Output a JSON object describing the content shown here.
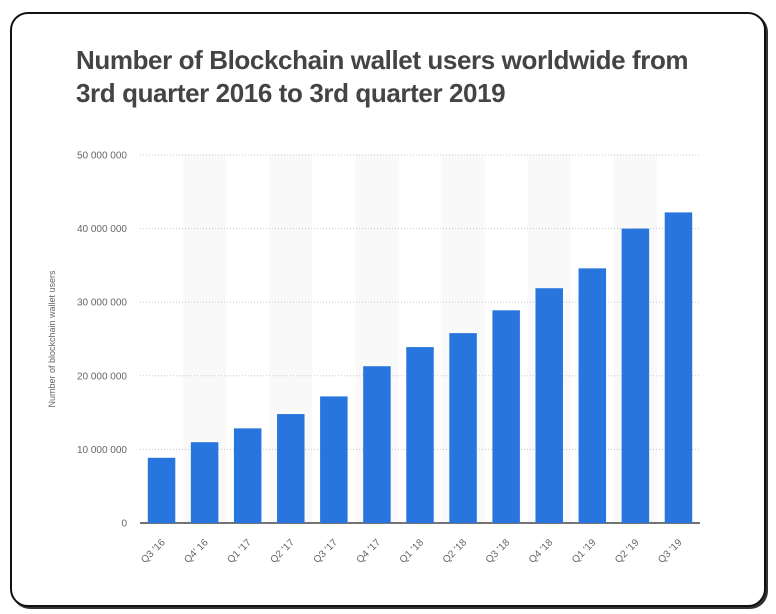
{
  "chart_data": {
    "type": "bar",
    "title": "Number of Blockchain wallet users worldwide from 3rd quarter 2016 to 3rd quarter 2019",
    "xlabel": "",
    "ylabel": "Number of blockchain wallet users",
    "categories": [
      "Q3 '16",
      "Q4' 16",
      "Q1 '17",
      "Q2 '17",
      "Q3 '17",
      "Q4 '17",
      "Q1 '18",
      "Q2 '18",
      "Q3 '18",
      "Q4 '18",
      "Q1 '19",
      "Q2 '19",
      "Q3 '19"
    ],
    "values": [
      8860000,
      10980000,
      12860000,
      14800000,
      17200000,
      21300000,
      23900000,
      25800000,
      28900000,
      31900000,
      34600000,
      40000000,
      42200000
    ],
    "ylim": [
      0,
      50000000
    ],
    "yticks": [
      0,
      10000000,
      20000000,
      30000000,
      40000000,
      50000000
    ],
    "ytick_labels": [
      "0",
      "10 000 000",
      "20 000 000",
      "30 000 000",
      "40 000 000",
      "50 000 000"
    ],
    "grid": true,
    "bar_color": "#2876dd"
  }
}
